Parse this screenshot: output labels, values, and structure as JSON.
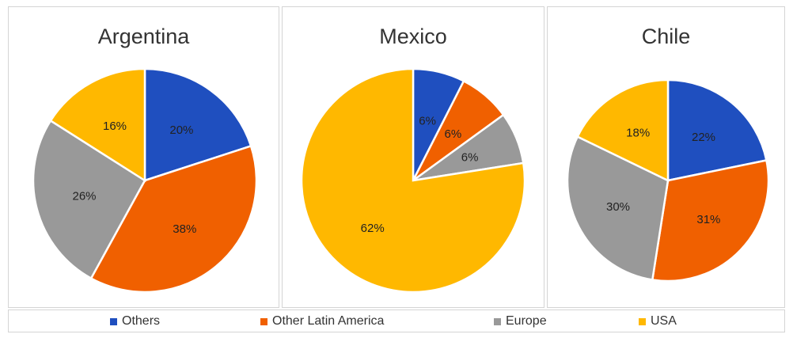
{
  "chart_data": [
    {
      "type": "pie",
      "title": "Argentina",
      "categories": [
        "Others",
        "Other Latin America",
        "Europe",
        "USA"
      ],
      "values": [
        20,
        38,
        26,
        16
      ],
      "labels": [
        "20%",
        "38%",
        "26%",
        "16%"
      ]
    },
    {
      "type": "pie",
      "title": "Mexico",
      "categories": [
        "Others",
        "Other Latin America",
        "Europe",
        "USA"
      ],
      "values": [
        6,
        6,
        6,
        62
      ],
      "labels": [
        "6%",
        "6%",
        "6%",
        "62%"
      ]
    },
    {
      "type": "pie",
      "title": "Chile",
      "categories": [
        "Others",
        "Other Latin America",
        "Europe",
        "USA"
      ],
      "values": [
        22,
        31,
        30,
        18
      ],
      "labels": [
        "22%",
        "31%",
        "30%",
        "18%"
      ]
    }
  ],
  "legend": {
    "placement": "bottom",
    "items": [
      {
        "label": "Others",
        "color": "#1f4fbf"
      },
      {
        "label": "Other Latin America",
        "color": "#f06000"
      },
      {
        "label": "Europe",
        "color": "#999999"
      },
      {
        "label": "USA",
        "color": "#ffb800"
      }
    ]
  }
}
